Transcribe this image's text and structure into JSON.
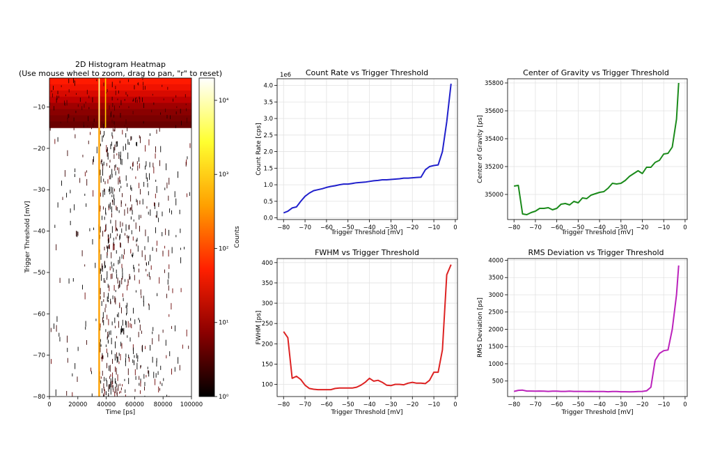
{
  "chart_data": [
    {
      "type": "heatmap",
      "title": "2D Histogram Heatmap",
      "subtitle": "(Use mouse wheel to zoom, drag to pan, \"r\" to reset)",
      "xlabel": "Time [ps]",
      "ylabel": "Trigger Threshold [mV]",
      "xlim": [
        0,
        100000
      ],
      "ylim": [
        -80,
        -3
      ],
      "xticks": [
        "0",
        "20000",
        "40000",
        "60000",
        "80000",
        "100000"
      ],
      "yticks": [
        "−80",
        "−70",
        "−60",
        "−50",
        "−40",
        "−30",
        "−20",
        "−10"
      ],
      "ytick_values": [
        -80,
        -70,
        -60,
        -50,
        -40,
        -30,
        -20,
        -10
      ],
      "xtick_values": [
        0,
        20000,
        40000,
        60000,
        80000,
        100000
      ],
      "peak_time": 35000,
      "dense_region_threshold": -15,
      "colorbar": {
        "label": "Counts",
        "scale": "log",
        "range": [
          1,
          20000
        ],
        "ticks": [
          "10⁰",
          "10¹",
          "10²",
          "10³",
          "10⁴"
        ],
        "tick_values": [
          1,
          10,
          100,
          1000,
          10000
        ],
        "colormap": [
          "#000000",
          "#8b0000",
          "#ff2000",
          "#ffa000",
          "#ffff30",
          "#ffffff"
        ]
      }
    },
    {
      "type": "line",
      "title": "Count Rate vs Trigger Threshold",
      "xlabel": "Trigger Threshold [mV]",
      "ylabel": "Count Rate [cps]",
      "offset_label": "1e6",
      "color": "#2020cc",
      "xlim": [
        -83,
        1
      ],
      "ylim": [
        -0.05,
        4.2
      ],
      "xticks": [
        "−80",
        "−70",
        "−60",
        "−50",
        "−40",
        "−30",
        "−20",
        "−10",
        "0"
      ],
      "xtick_values": [
        -80,
        -70,
        -60,
        -50,
        -40,
        -30,
        -20,
        -10,
        0
      ],
      "yticks": [
        "0.0",
        "0.5",
        "1.0",
        "1.5",
        "2.0",
        "2.5",
        "3.0",
        "3.5",
        "4.0"
      ],
      "ytick_values": [
        0,
        0.5,
        1.0,
        1.5,
        2.0,
        2.5,
        3.0,
        3.5,
        4.0
      ],
      "x": [
        -80,
        -78,
        -76,
        -74,
        -72,
        -70,
        -68,
        -66,
        -64,
        -62,
        -60,
        -58,
        -56,
        -54,
        -52,
        -50,
        -48,
        -46,
        -44,
        -42,
        -40,
        -38,
        -36,
        -34,
        -32,
        -30,
        -28,
        -26,
        -24,
        -22,
        -20,
        -18,
        -16,
        -14,
        -12,
        -10,
        -8,
        -6,
        -4,
        -2
      ],
      "y": [
        0.15,
        0.2,
        0.3,
        0.33,
        0.5,
        0.65,
        0.75,
        0.82,
        0.85,
        0.88,
        0.92,
        0.95,
        0.97,
        1.0,
        1.02,
        1.02,
        1.04,
        1.06,
        1.07,
        1.08,
        1.1,
        1.12,
        1.13,
        1.15,
        1.15,
        1.16,
        1.17,
        1.18,
        1.2,
        1.2,
        1.21,
        1.22,
        1.23,
        1.45,
        1.55,
        1.58,
        1.6,
        2.0,
        2.9,
        4.05
      ]
    },
    {
      "type": "line",
      "title": "Center of Gravity vs Trigger Threshold",
      "xlabel": "Trigger Threshold [mV]",
      "ylabel": "Center of Gravity [ps]",
      "color": "#1a8a1a",
      "xlim": [
        -83,
        1
      ],
      "ylim": [
        34820,
        35830
      ],
      "xticks": [
        "−80",
        "−70",
        "−60",
        "−50",
        "−40",
        "−30",
        "−20",
        "−10",
        "0"
      ],
      "xtick_values": [
        -80,
        -70,
        -60,
        -50,
        -40,
        -30,
        -20,
        -10,
        0
      ],
      "yticks": [
        "35000",
        "35200",
        "35400",
        "35600",
        "35800"
      ],
      "ytick_values": [
        35000,
        35200,
        35400,
        35600,
        35800
      ],
      "x": [
        -80,
        -78,
        -76,
        -74,
        -72,
        -70,
        -68,
        -66,
        -64,
        -62,
        -60,
        -58,
        -56,
        -54,
        -52,
        -50,
        -48,
        -46,
        -44,
        -42,
        -40,
        -38,
        -36,
        -34,
        -32,
        -30,
        -28,
        -26,
        -24,
        -22,
        -20,
        -18,
        -16,
        -14,
        -12,
        -10,
        -8,
        -6,
        -4,
        -3
      ],
      "y": [
        35060,
        35065,
        34860,
        34855,
        34870,
        34880,
        34900,
        34900,
        34905,
        34890,
        34900,
        34930,
        34935,
        34925,
        34950,
        34940,
        34975,
        34970,
        34995,
        35005,
        35015,
        35020,
        35045,
        35080,
        35075,
        35080,
        35100,
        35130,
        35150,
        35170,
        35150,
        35195,
        35195,
        35230,
        35245,
        35290,
        35295,
        35340,
        35540,
        35800
      ]
    },
    {
      "type": "line",
      "title": "FWHM vs Trigger Threshold",
      "xlabel": "Trigger Threshold [mV]",
      "ylabel": "FWHM [ps]",
      "color": "#dd2222",
      "xlim": [
        -83,
        1
      ],
      "ylim": [
        70,
        410
      ],
      "xticks": [
        "−80",
        "−70",
        "−60",
        "−50",
        "−40",
        "−30",
        "−20",
        "−10",
        "0"
      ],
      "xtick_values": [
        -80,
        -70,
        -60,
        -50,
        -40,
        -30,
        -20,
        -10,
        0
      ],
      "yticks": [
        "100",
        "150",
        "200",
        "250",
        "300",
        "350",
        "400"
      ],
      "ytick_values": [
        100,
        150,
        200,
        250,
        300,
        350,
        400
      ],
      "x": [
        -80,
        -78,
        -76,
        -74,
        -72,
        -70,
        -68,
        -66,
        -64,
        -62,
        -60,
        -58,
        -56,
        -54,
        -52,
        -50,
        -48,
        -46,
        -44,
        -42,
        -40,
        -38,
        -36,
        -34,
        -32,
        -30,
        -28,
        -26,
        -24,
        -22,
        -20,
        -18,
        -16,
        -14,
        -12,
        -10,
        -8,
        -6,
        -4,
        -2
      ],
      "y": [
        230,
        215,
        115,
        120,
        112,
        98,
        90,
        88,
        87,
        87,
        87,
        87,
        90,
        91,
        91,
        91,
        91,
        93,
        98,
        105,
        115,
        108,
        110,
        105,
        98,
        97,
        100,
        100,
        99,
        103,
        105,
        103,
        103,
        102,
        110,
        130,
        130,
        185,
        370,
        395
      ]
    },
    {
      "type": "line",
      "title": "RMS Deviation vs Trigger Threshold",
      "xlabel": "Trigger Threshold [mV]",
      "ylabel": "RMS Deviation [ps]",
      "color": "#bb22bb",
      "xlim": [
        -83,
        1
      ],
      "ylim": [
        50,
        4050
      ],
      "xticks": [
        "−80",
        "−70",
        "−60",
        "−50",
        "−40",
        "−30",
        "−20",
        "−10",
        "0"
      ],
      "xtick_values": [
        -80,
        -70,
        -60,
        -50,
        -40,
        -30,
        -20,
        -10,
        0
      ],
      "yticks": [
        "500",
        "1000",
        "1500",
        "2000",
        "2500",
        "3000",
        "3500",
        "4000"
      ],
      "ytick_values": [
        500,
        1000,
        1500,
        2000,
        2500,
        3000,
        3500,
        4000
      ],
      "x": [
        -80,
        -78,
        -76,
        -74,
        -72,
        -70,
        -68,
        -66,
        -64,
        -62,
        -60,
        -58,
        -56,
        -54,
        -52,
        -50,
        -48,
        -46,
        -44,
        -42,
        -40,
        -38,
        -36,
        -34,
        -32,
        -30,
        -28,
        -26,
        -24,
        -22,
        -20,
        -18,
        -16,
        -14,
        -12,
        -10,
        -8,
        -6,
        -4,
        -3
      ],
      "y": [
        200,
        230,
        235,
        210,
        210,
        205,
        210,
        205,
        200,
        205,
        205,
        200,
        200,
        205,
        200,
        200,
        200,
        195,
        200,
        198,
        195,
        195,
        190,
        195,
        195,
        190,
        190,
        185,
        190,
        195,
        200,
        215,
        320,
        1100,
        1300,
        1380,
        1400,
        2000,
        3000,
        3850
      ]
    }
  ]
}
